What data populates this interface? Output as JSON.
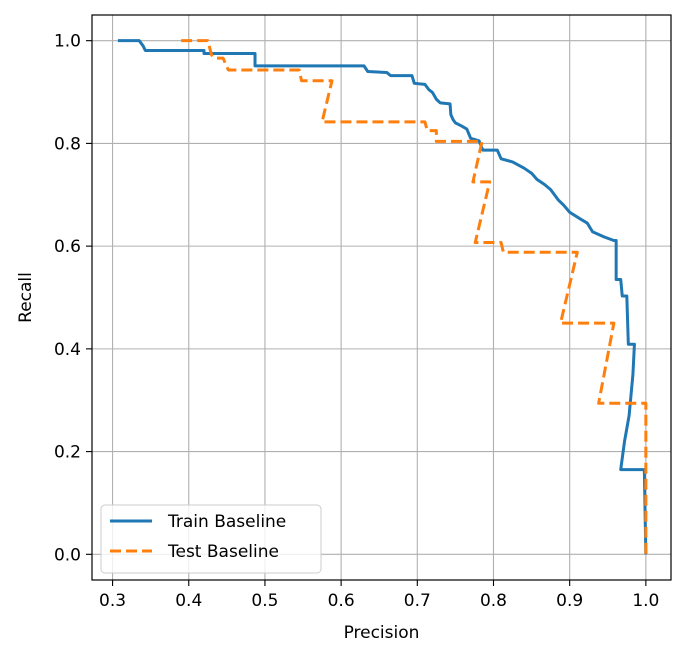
{
  "chart_data": {
    "type": "line",
    "title": "",
    "xlabel": "Precision",
    "ylabel": "Recall",
    "xlim": [
      0.273,
      1.033
    ],
    "ylim": [
      -0.05,
      1.05
    ],
    "xticks": [
      "0.3",
      "0.4",
      "0.5",
      "0.6",
      "0.7",
      "0.8",
      "0.9",
      "1.0"
    ],
    "yticks": [
      "0.0",
      "0.2",
      "0.4",
      "0.6",
      "0.8",
      "1.0"
    ],
    "grid": true,
    "legend_position": "lower left",
    "series": [
      {
        "name": "Train Baseline",
        "color": "#1f77b4",
        "style": "solid",
        "points": [
          [
            0.307,
            1.0
          ],
          [
            0.335,
            1.0
          ],
          [
            0.34,
            0.99
          ],
          [
            0.343,
            0.981
          ],
          [
            0.42,
            0.981
          ],
          [
            0.42,
            0.975
          ],
          [
            0.487,
            0.975
          ],
          [
            0.487,
            0.951
          ],
          [
            0.63,
            0.951
          ],
          [
            0.635,
            0.94
          ],
          [
            0.66,
            0.938
          ],
          [
            0.665,
            0.932
          ],
          [
            0.693,
            0.932
          ],
          [
            0.696,
            0.917
          ],
          [
            0.71,
            0.915
          ],
          [
            0.715,
            0.905
          ],
          [
            0.72,
            0.899
          ],
          [
            0.725,
            0.886
          ],
          [
            0.73,
            0.879
          ],
          [
            0.743,
            0.877
          ],
          [
            0.744,
            0.856
          ],
          [
            0.747,
            0.846
          ],
          [
            0.75,
            0.84
          ],
          [
            0.758,
            0.834
          ],
          [
            0.765,
            0.828
          ],
          [
            0.77,
            0.81
          ],
          [
            0.781,
            0.805
          ],
          [
            0.786,
            0.787
          ],
          [
            0.805,
            0.787
          ],
          [
            0.81,
            0.77
          ],
          [
            0.825,
            0.764
          ],
          [
            0.84,
            0.752
          ],
          [
            0.85,
            0.742
          ],
          [
            0.857,
            0.73
          ],
          [
            0.867,
            0.72
          ],
          [
            0.875,
            0.71
          ],
          [
            0.885,
            0.69
          ],
          [
            0.892,
            0.68
          ],
          [
            0.9,
            0.666
          ],
          [
            0.915,
            0.652
          ],
          [
            0.923,
            0.645
          ],
          [
            0.93,
            0.628
          ],
          [
            0.945,
            0.618
          ],
          [
            0.958,
            0.611
          ],
          [
            0.961,
            0.611
          ],
          [
            0.961,
            0.535
          ],
          [
            0.967,
            0.535
          ],
          [
            0.969,
            0.503
          ],
          [
            0.975,
            0.503
          ],
          [
            0.977,
            0.409
          ],
          [
            0.985,
            0.409
          ],
          [
            0.983,
            0.35
          ],
          [
            0.978,
            0.27
          ],
          [
            0.972,
            0.22
          ],
          [
            0.967,
            0.165
          ],
          [
            0.998,
            0.165
          ],
          [
            1.0,
            0.0
          ]
        ]
      },
      {
        "name": "Test Baseline",
        "color": "#ff7f0e",
        "style": "dashed",
        "points": [
          [
            0.39,
            1.0
          ],
          [
            0.425,
            1.0
          ],
          [
            0.43,
            0.972
          ],
          [
            0.435,
            0.966
          ],
          [
            0.445,
            0.966
          ],
          [
            0.452,
            0.943
          ],
          [
            0.545,
            0.943
          ],
          [
            0.548,
            0.922
          ],
          [
            0.588,
            0.922
          ],
          [
            0.575,
            0.842
          ],
          [
            0.71,
            0.842
          ],
          [
            0.713,
            0.825
          ],
          [
            0.725,
            0.825
          ],
          [
            0.725,
            0.804
          ],
          [
            0.785,
            0.804
          ],
          [
            0.773,
            0.725
          ],
          [
            0.795,
            0.725
          ],
          [
            0.776,
            0.607
          ],
          [
            0.81,
            0.607
          ],
          [
            0.813,
            0.588
          ],
          [
            0.91,
            0.588
          ],
          [
            0.888,
            0.45
          ],
          [
            0.958,
            0.45
          ],
          [
            0.938,
            0.294
          ],
          [
            1.0,
            0.294
          ],
          [
            1.0,
            0.0
          ]
        ]
      }
    ]
  }
}
